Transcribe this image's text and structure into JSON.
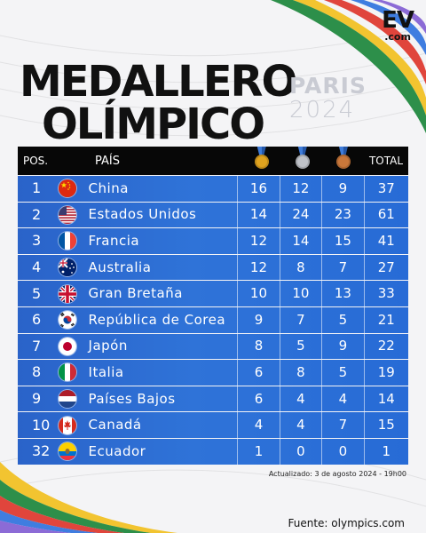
{
  "brand": {
    "mark": "EV",
    "sub": ".com"
  },
  "title": {
    "line1": "MEDALLERO",
    "line2": "OLÍMPICO"
  },
  "games": {
    "city": "PARIS",
    "year": "2024"
  },
  "table": {
    "headers": {
      "pos": "POS.",
      "country": "PAÍS",
      "total": "TOTAL"
    },
    "medal_icons": [
      "gold-medal-icon",
      "silver-medal-icon",
      "bronze-medal-icon"
    ],
    "rows": [
      {
        "pos": "1",
        "country": "China",
        "flag": "china-flag-icon",
        "gold": "16",
        "silver": "12",
        "bronze": "9",
        "total": "37"
      },
      {
        "pos": "2",
        "country": "Estados Unidos",
        "flag": "usa-flag-icon",
        "gold": "14",
        "silver": "24",
        "bronze": "23",
        "total": "61"
      },
      {
        "pos": "3",
        "country": "Francia",
        "flag": "france-flag-icon",
        "gold": "12",
        "silver": "14",
        "bronze": "15",
        "total": "41"
      },
      {
        "pos": "4",
        "country": "Australia",
        "flag": "australia-flag-icon",
        "gold": "12",
        "silver": "8",
        "bronze": "7",
        "total": "27"
      },
      {
        "pos": "5",
        "country": "Gran Bretaña",
        "flag": "uk-flag-icon",
        "gold": "10",
        "silver": "10",
        "bronze": "13",
        "total": "33"
      },
      {
        "pos": "6",
        "country": "República de Corea",
        "flag": "korea-flag-icon",
        "gold": "9",
        "silver": "7",
        "bronze": "5",
        "total": "21"
      },
      {
        "pos": "7",
        "country": "Japón",
        "flag": "japan-flag-icon",
        "gold": "8",
        "silver": "5",
        "bronze": "9",
        "total": "22"
      },
      {
        "pos": "8",
        "country": "Italia",
        "flag": "italy-flag-icon",
        "gold": "6",
        "silver": "8",
        "bronze": "5",
        "total": "19"
      },
      {
        "pos": "9",
        "country": "Países Bajos",
        "flag": "netherlands-flag-icon",
        "gold": "6",
        "silver": "4",
        "bronze": "4",
        "total": "14"
      },
      {
        "pos": "10",
        "country": "Canadá",
        "flag": "canada-flag-icon",
        "gold": "4",
        "silver": "4",
        "bronze": "7",
        "total": "15"
      },
      {
        "pos": "32",
        "country": "Ecuador",
        "flag": "ecuador-flag-icon",
        "gold": "1",
        "silver": "0",
        "bronze": "0",
        "total": "1"
      }
    ]
  },
  "footer": {
    "updated": "Actualizado: 3 de agosto 2024 - 19h00",
    "source": "Fuente: olympics.com"
  },
  "colors": {
    "row_blue": "#2f73d8",
    "header_black": "#070707",
    "gold": "#e0a31f",
    "silver": "#bfc2c8",
    "bronze": "#c9773a"
  }
}
